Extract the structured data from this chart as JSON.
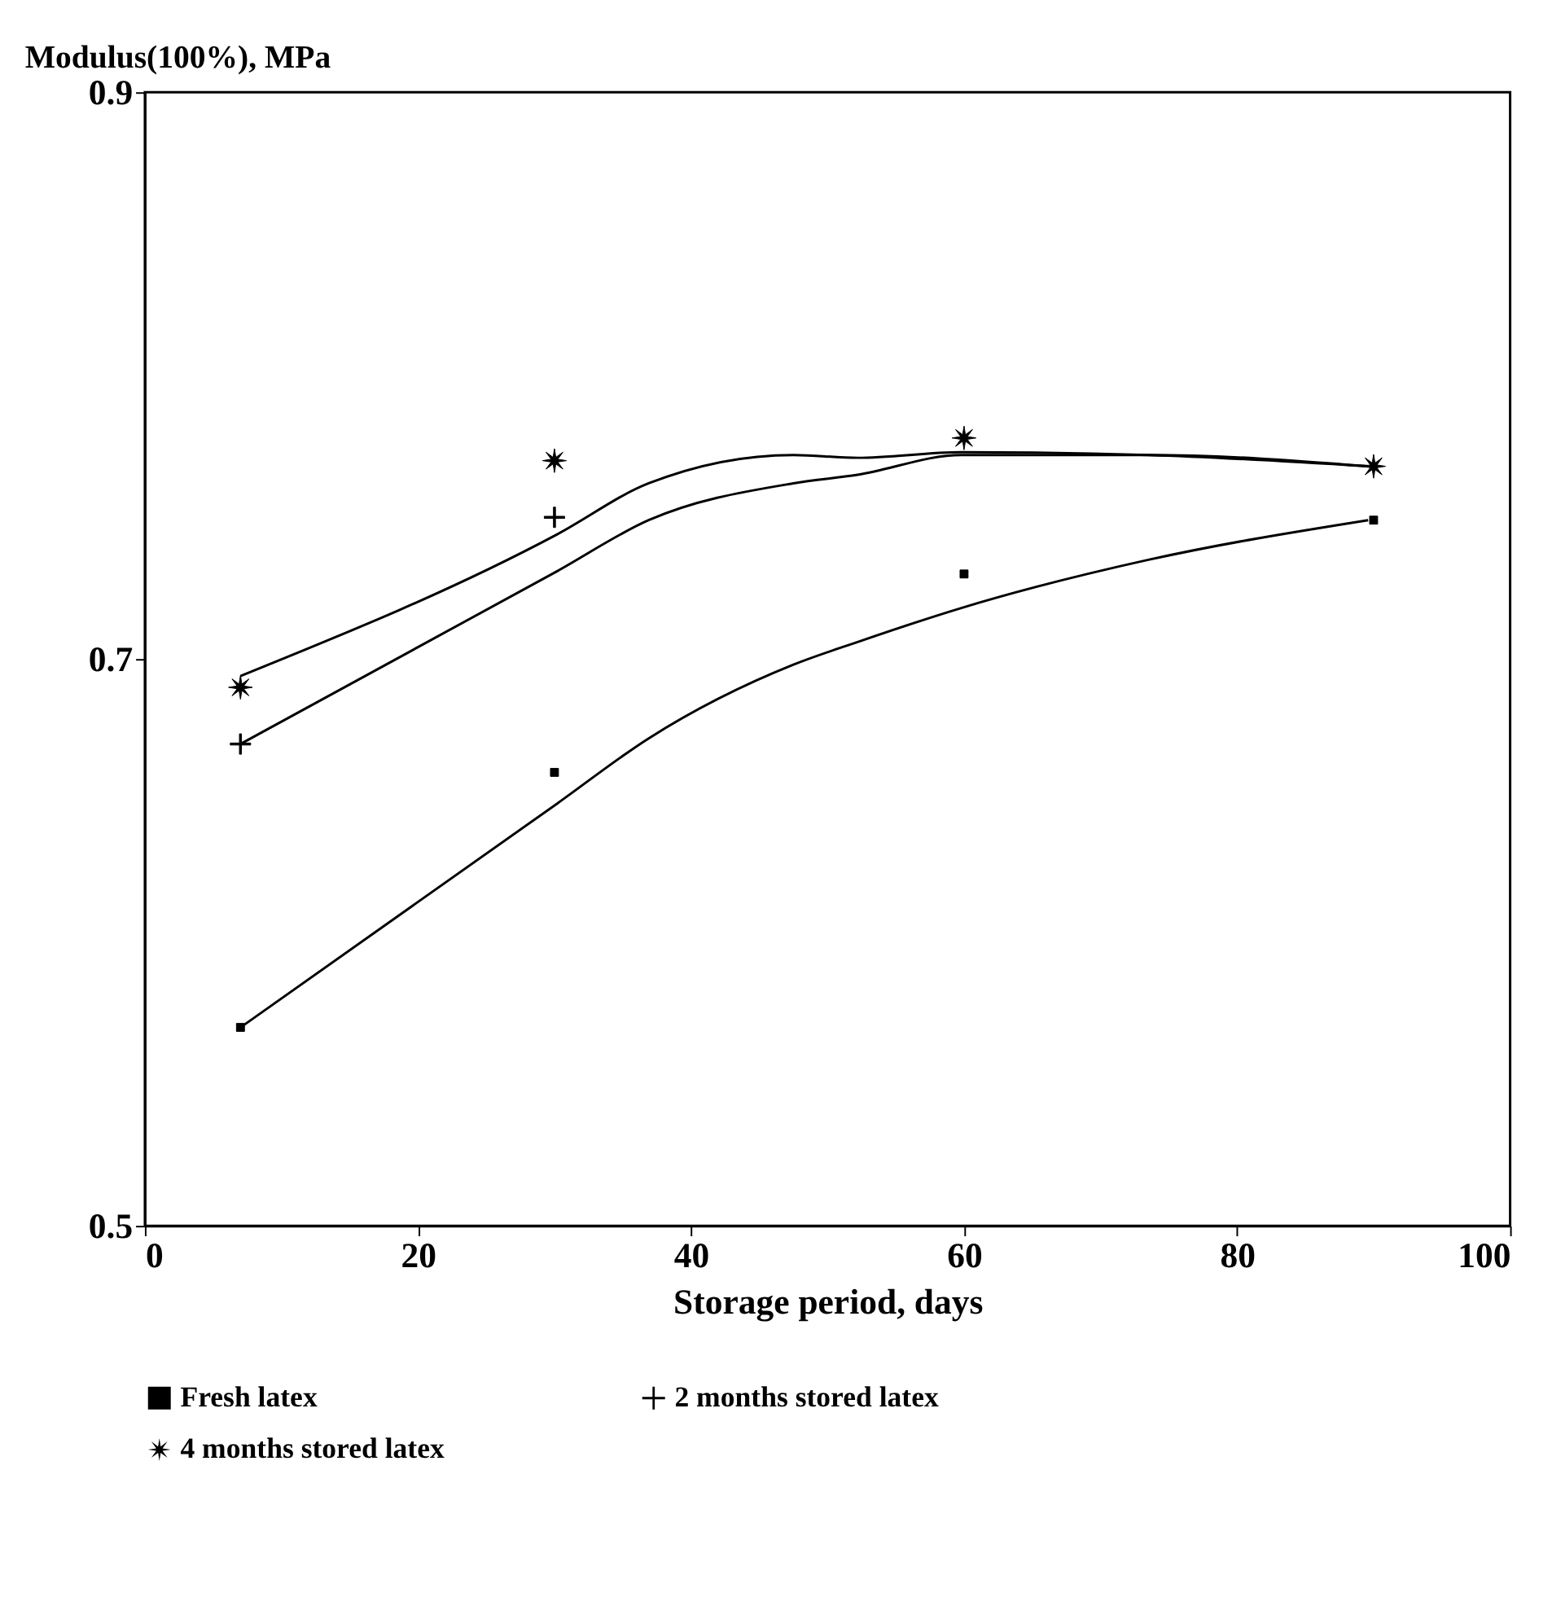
{
  "chart_data": {
    "type": "scatter",
    "xlabel": "Storage period, days",
    "ylabel": "Modulus(100%), MPa",
    "x": [
      7,
      30,
      60,
      90
    ],
    "xlim": [
      0,
      100
    ],
    "xticks": [
      0,
      20,
      40,
      60,
      80,
      100
    ],
    "ylim": [
      0.5,
      0.9
    ],
    "yticks": [
      0.5,
      0.7,
      0.9
    ],
    "grid": false,
    "legend": "bottom",
    "series": [
      {
        "name": "Fresh latex",
        "color": "#000000",
        "marker": "square",
        "values": [
          0.57,
          0.66,
          0.73,
          0.749
        ]
      },
      {
        "name": "2 months stored latex",
        "color": "#000000",
        "marker": "cross",
        "values": [
          0.67,
          0.75,
          null,
          null
        ]
      },
      {
        "name": "4 months stored latex",
        "color": "#000000",
        "marker": "star",
        "values": [
          0.69,
          0.77,
          0.778,
          0.768
        ]
      },
      {
        "type": "line",
        "color": "#000000",
        "marker": "none",
        "x": [
          7,
          30.2,
          36.9,
          47.5,
          52.2,
          59.8,
          73.5,
          89.6
        ],
        "values": [
          0.57,
          0.649,
          0.672,
          0.698,
          0.706,
          0.718,
          0.735,
          0.749
        ]
      },
      {
        "type": "line",
        "color": "#000000",
        "marker": "none",
        "x": [
          7,
          30.2,
          36.9,
          47.5,
          52.2,
          59.8,
          73.5,
          89.6
        ],
        "values": [
          0.67,
          0.731,
          0.749,
          0.762,
          0.765,
          0.772,
          0.772,
          0.768
        ]
      },
      {
        "type": "line",
        "color": "#000000",
        "marker": "none",
        "x": [
          7,
          30.2,
          36.9,
          47.5,
          52.2,
          59.8,
          73.5,
          89.6
        ],
        "values": [
          0.694,
          0.744,
          0.762,
          0.772,
          0.771,
          0.773,
          0.772,
          0.768
        ]
      }
    ]
  }
}
